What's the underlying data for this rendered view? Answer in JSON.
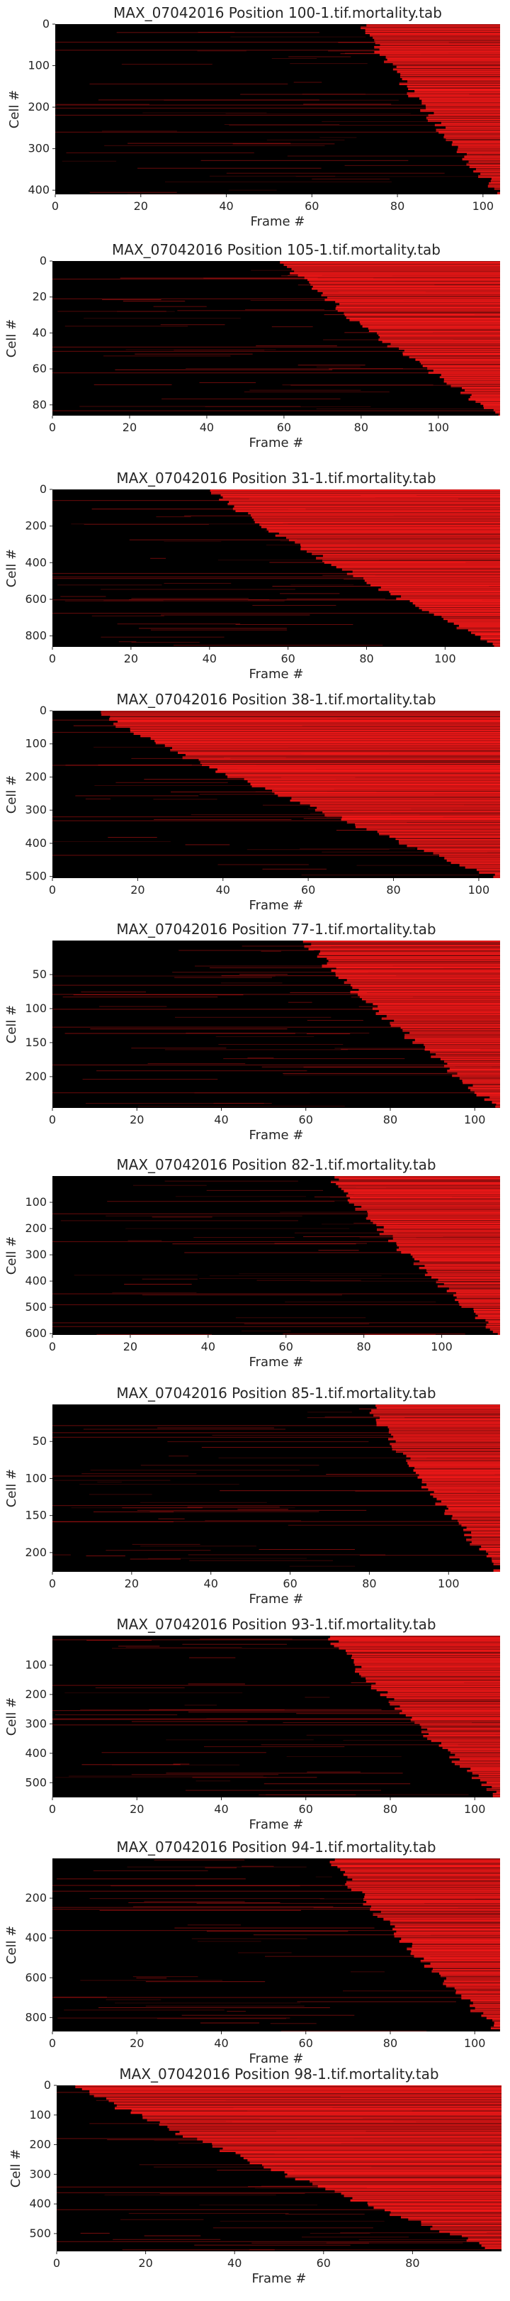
{
  "figure": {
    "colors": {
      "background": "#000000",
      "signal": "#ff1a1a",
      "text": "#262626"
    }
  },
  "chart_data": [
    {
      "type": "heatmap",
      "title": "MAX_07042016 Position 100-1.tif.mortality.tab",
      "xlabel": "Frame #",
      "ylabel": "Cell #",
      "xlim": [
        0,
        104
      ],
      "ylim": [
        410,
        0
      ],
      "xticks": [
        "0",
        "20",
        "40",
        "60",
        "80",
        "100"
      ],
      "yticks": [
        "0",
        "100",
        "200",
        "300",
        "400"
      ],
      "ytick_values": [
        0,
        100,
        200,
        300,
        400
      ],
      "onset_start_frame": 72,
      "onset_end_frame": 104
    },
    {
      "type": "heatmap",
      "title": "MAX_07042016 Position 105-1.tif.mortality.tab",
      "xlabel": "Frame #",
      "ylabel": "Cell #",
      "xlim": [
        0,
        116
      ],
      "ylim": [
        86,
        0
      ],
      "xticks": [
        "0",
        "20",
        "40",
        "60",
        "80",
        "100"
      ],
      "yticks": [
        "0",
        "20",
        "40",
        "60",
        "80"
      ],
      "ytick_values": [
        0,
        20,
        40,
        60,
        80
      ],
      "onset_start_frame": 60,
      "onset_end_frame": 116
    },
    {
      "type": "heatmap",
      "title": "MAX_07042016 Position 31-1.tif.mortality.tab",
      "xlabel": "Frame #",
      "ylabel": "Cell #",
      "xlim": [
        0,
        114
      ],
      "ylim": [
        860,
        0
      ],
      "xticks": [
        "0",
        "20",
        "40",
        "60",
        "80",
        "100"
      ],
      "yticks": [
        "0",
        "200",
        "400",
        "600",
        "800"
      ],
      "ytick_values": [
        0,
        200,
        400,
        600,
        800
      ],
      "onset_start_frame": 40,
      "onset_end_frame": 114
    },
    {
      "type": "heatmap",
      "title": "MAX_07042016 Position 38-1.tif.mortality.tab",
      "xlabel": "Frame #",
      "ylabel": "Cell #",
      "xlim": [
        0,
        105
      ],
      "ylim": [
        505,
        0
      ],
      "xticks": [
        "0",
        "20",
        "40",
        "60",
        "80",
        "100"
      ],
      "yticks": [
        "0",
        "100",
        "200",
        "300",
        "400",
        "500"
      ],
      "ytick_values": [
        0,
        100,
        200,
        300,
        400,
        500
      ],
      "onset_start_frame": 10,
      "onset_end_frame": 105
    },
    {
      "type": "heatmap",
      "title": "MAX_07042016 Position 77-1.tif.mortality.tab",
      "xlabel": "Frame #",
      "ylabel": "Cell #",
      "xlim": [
        0,
        106
      ],
      "ylim": [
        246,
        0
      ],
      "xticks": [
        "0",
        "20",
        "40",
        "60",
        "80",
        "100"
      ],
      "yticks": [
        "50",
        "100",
        "150",
        "200"
      ],
      "ytick_values": [
        50,
        100,
        150,
        200
      ],
      "onset_start_frame": 60,
      "onset_end_frame": 106
    },
    {
      "type": "heatmap",
      "title": "MAX_07042016 Position 82-1.tif.mortality.tab",
      "xlabel": "Frame #",
      "ylabel": "Cell #",
      "xlim": [
        0,
        115
      ],
      "ylim": [
        605,
        0
      ],
      "xticks": [
        "0",
        "20",
        "40",
        "60",
        "80",
        "100"
      ],
      "yticks": [
        "100",
        "200",
        "300",
        "400",
        "500",
        "600"
      ],
      "ytick_values": [
        100,
        200,
        300,
        400,
        500,
        600
      ],
      "onset_start_frame": 72,
      "onset_end_frame": 115
    },
    {
      "type": "heatmap",
      "title": "MAX_07042016 Position 85-1.tif.mortality.tab",
      "xlabel": "Frame #",
      "ylabel": "Cell #",
      "xlim": [
        0,
        113
      ],
      "ylim": [
        226,
        0
      ],
      "xticks": [
        "0",
        "20",
        "40",
        "60",
        "80",
        "100"
      ],
      "yticks": [
        "50",
        "100",
        "150",
        "200"
      ],
      "ytick_values": [
        50,
        100,
        150,
        200
      ],
      "onset_start_frame": 80,
      "onset_end_frame": 113
    },
    {
      "type": "heatmap",
      "title": "MAX_07042016 Position 93-1.tif.mortality.tab",
      "xlabel": "Frame #",
      "ylabel": "Cell #",
      "xlim": [
        0,
        106
      ],
      "ylim": [
        550,
        0
      ],
      "xticks": [
        "0",
        "20",
        "40",
        "60",
        "80",
        "100"
      ],
      "yticks": [
        "100",
        "200",
        "300",
        "400",
        "500"
      ],
      "ytick_values": [
        100,
        200,
        300,
        400,
        500
      ],
      "onset_start_frame": 66,
      "onset_end_frame": 106
    },
    {
      "type": "heatmap",
      "title": "MAX_07042016 Position 94-1.tif.mortality.tab",
      "xlabel": "Frame #",
      "ylabel": "Cell #",
      "xlim": [
        0,
        106
      ],
      "ylim": [
        870,
        0
      ],
      "xticks": [
        "0",
        "20",
        "40",
        "60",
        "80",
        "100"
      ],
      "yticks": [
        "200",
        "400",
        "600",
        "800"
      ],
      "ytick_values": [
        200,
        400,
        600,
        800
      ],
      "onset_start_frame": 66,
      "onset_end_frame": 106
    },
    {
      "type": "heatmap",
      "title": "MAX_07042016 Position 98-1.tif.mortality.tab",
      "xlabel": "Frame #",
      "ylabel": "Cell #",
      "xlim": [
        0,
        100
      ],
      "ylim": [
        560,
        0
      ],
      "xticks": [
        "0",
        "20",
        "40",
        "60",
        "80"
      ],
      "yticks": [
        "0",
        "100",
        "200",
        "300",
        "400",
        "500"
      ],
      "ytick_values": [
        0,
        100,
        200,
        300,
        400,
        500
      ],
      "onset_start_frame": 5,
      "onset_end_frame": 100
    }
  ]
}
